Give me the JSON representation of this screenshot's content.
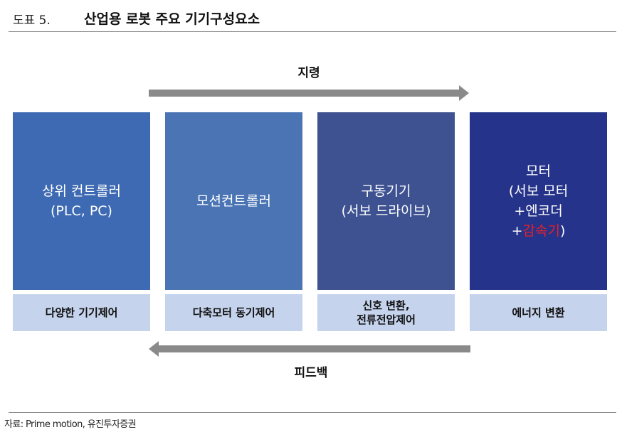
{
  "header": {
    "fig_num": "도표 5.",
    "title": "산업용 로봇 주요 기기구성요소"
  },
  "arrows": {
    "top_label": "지령",
    "bottom_label": "피드백"
  },
  "boxes": [
    {
      "lines": [
        "상위 컨트롤러",
        "(PLC, PC)"
      ],
      "color": "#3e6ab3",
      "sub": [
        "다양한 기기제어"
      ]
    },
    {
      "lines": [
        "모션컨트롤러"
      ],
      "color": "#4a74b4",
      "sub": [
        "다축모터 동기제어"
      ]
    },
    {
      "lines": [
        "구동기기",
        "(서보 드라이브)"
      ],
      "color": "#3e5291",
      "sub": [
        "신호 변환,",
        "전류전압제어"
      ]
    },
    {
      "lines": [
        "모터",
        "(서보 모터",
        "+엔코더"
      ],
      "last_prefix": "+",
      "last_accent": "감속기",
      "last_suffix": ")",
      "color": "#25338a",
      "sub": [
        "에너지 변환"
      ]
    }
  ],
  "colors": {
    "arrow": "#8a8a8a",
    "sub_box": "#c5d3ec",
    "accent": "#e4202a"
  },
  "footer": {
    "source": "자료: Prime motion, 유진투자증권"
  }
}
